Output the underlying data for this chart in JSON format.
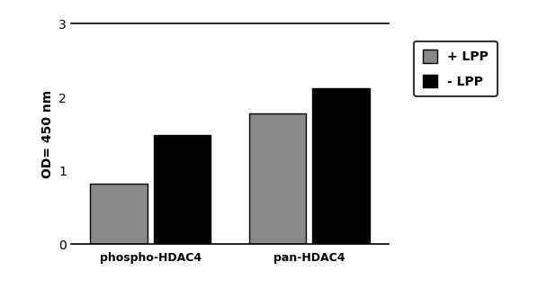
{
  "categories": [
    "phospho-HDAC4",
    "pan-HDAC4"
  ],
  "plus_lpp": [
    0.83,
    1.78
  ],
  "minus_lpp": [
    1.49,
    2.12
  ],
  "bar_color_plus": "#888888",
  "bar_color_minus": "#000000",
  "ylabel": "OD= 450 nm",
  "ylim": [
    0,
    3
  ],
  "yticks": [
    0,
    1,
    2,
    3
  ],
  "legend_labels": [
    "+ LPP",
    "- LPP"
  ],
  "bar_width": 0.18,
  "background_color": "#ffffff",
  "edge_color": "#000000"
}
